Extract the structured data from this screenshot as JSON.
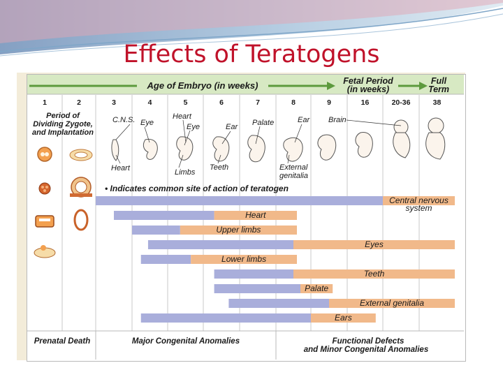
{
  "slide": {
    "title": "Effects of Teratogens"
  },
  "header": {
    "age_label": "Age of Embryo (in weeks)",
    "fetal_line1": "Fetal Period",
    "fetal_line2": "(in weeks)",
    "full_line1": "Full",
    "full_line2": "Term"
  },
  "weeks": [
    "1",
    "2",
    "3",
    "4",
    "5",
    "6",
    "7",
    "8",
    "9",
    "16",
    "20-36",
    "38"
  ],
  "period_label": [
    "Period of",
    "Dividing Zygote,",
    "and Implantation"
  ],
  "organ_labels": {
    "cns": "C.N.S.",
    "eye3": "Eye",
    "heart5": "Heart",
    "eye5": "Eye",
    "ear6": "Ear",
    "palate": "Palate",
    "ear8": "Ear",
    "brain": "Brain",
    "heart3": "Heart",
    "limbs": "Limbs",
    "teeth": "Teeth",
    "external": "External",
    "genitalia": "genitalia"
  },
  "legend_note": "• Indicates common site of action of teratogen",
  "colors": {
    "sensitive": "#a9aedb",
    "less_sensitive": "#f1b98a",
    "background": "#f3ecd9",
    "title": "#c0122a"
  },
  "chart_data": {
    "type": "gantt",
    "unit": "week column index (0 = week 1 ... 11 = week 38)",
    "rows": [
      {
        "label": "Central nervous system",
        "label_lines": [
          "Central nervous",
          "system"
        ],
        "sensitive": [
          2.0,
          10.0
        ],
        "less_sensitive": [
          10.0,
          12.0
        ]
      },
      {
        "label": "Heart",
        "sensitive": [
          2.5,
          5.3
        ],
        "less_sensitive": [
          5.3,
          7.6
        ]
      },
      {
        "label": "Upper limbs",
        "sensitive": [
          3.0,
          4.35
        ],
        "less_sensitive": [
          4.35,
          7.6
        ]
      },
      {
        "label": "Eyes",
        "sensitive": [
          3.45,
          7.5
        ],
        "less_sensitive": [
          7.5,
          12.0
        ]
      },
      {
        "label": "Lower limbs",
        "sensitive": [
          3.25,
          4.65
        ],
        "less_sensitive": [
          4.65,
          7.6
        ]
      },
      {
        "label": "Teeth",
        "sensitive": [
          5.3,
          7.5
        ],
        "less_sensitive": [
          7.5,
          12.0
        ]
      },
      {
        "label": "Palate",
        "sensitive": [
          5.3,
          7.7
        ],
        "less_sensitive": [
          7.7,
          8.6
        ]
      },
      {
        "label": "External genitalia",
        "sensitive": [
          5.7,
          8.5
        ],
        "less_sensitive": [
          8.5,
          12.0
        ]
      },
      {
        "label": "Ears",
        "sensitive": [
          3.25,
          8.0
        ],
        "less_sensitive": [
          8.0,
          9.8
        ]
      }
    ]
  },
  "footer": {
    "prenatal": "Prenatal Death",
    "major": "Major Congenital Anomalies",
    "functional_line1": "Functional Defects",
    "functional_line2": "and Minor Congenital Anomalies"
  }
}
